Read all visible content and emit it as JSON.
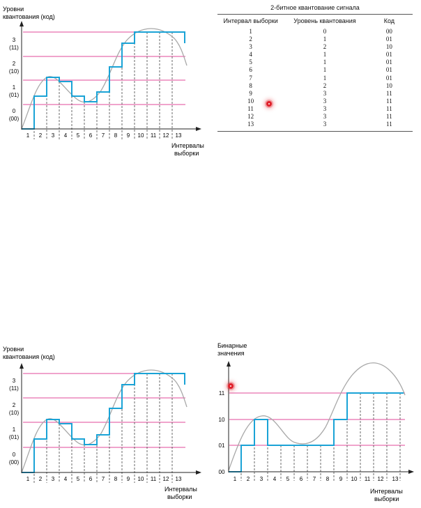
{
  "figure_top_left": {
    "y_axis_title_lines": [
      "Уровни",
      "квантования (код)"
    ],
    "x_axis_title_lines": [
      "Интервалы",
      "выборки"
    ],
    "level_labels": [
      {
        "level": "0",
        "code": "(00)"
      },
      {
        "level": "1",
        "code": "(01)"
      },
      {
        "level": "2",
        "code": "(10)"
      },
      {
        "level": "3",
        "code": "(11)"
      }
    ],
    "interval_labels": [
      "1",
      "2",
      "3",
      "4",
      "5",
      "6",
      "7",
      "8",
      "9",
      "10",
      "11",
      "12",
      "13"
    ]
  },
  "table": {
    "title": "2-битное квантование сигнала",
    "headers": [
      "Интервал выборки",
      "Уровень квантования",
      "Код"
    ],
    "rows": [
      [
        "1",
        "0",
        "00"
      ],
      [
        "2",
        "1",
        "01"
      ],
      [
        "3",
        "2",
        "10"
      ],
      [
        "4",
        "1",
        "01"
      ],
      [
        "5",
        "1",
        "01"
      ],
      [
        "6",
        "1",
        "01"
      ],
      [
        "7",
        "1",
        "01"
      ],
      [
        "8",
        "2",
        "10"
      ],
      [
        "9",
        "3",
        "11"
      ],
      [
        "10",
        "3",
        "11"
      ],
      [
        "11",
        "3",
        "11"
      ],
      [
        "12",
        "3",
        "11"
      ],
      [
        "13",
        "3",
        "11"
      ]
    ]
  },
  "figure_bottom_left": {
    "y_axis_title_lines": [
      "Уровни",
      "квантования (код)"
    ],
    "x_axis_title_lines": [
      "Интервалы",
      "выборки"
    ],
    "level_labels": [
      {
        "level": "0",
        "code": "(00)"
      },
      {
        "level": "1",
        "code": "(01)"
      },
      {
        "level": "2",
        "code": "(10)"
      },
      {
        "level": "3",
        "code": "(11)"
      }
    ],
    "interval_labels": [
      "1",
      "2",
      "3",
      "4",
      "5",
      "6",
      "7",
      "8",
      "9",
      "10",
      "11",
      "12",
      "13"
    ]
  },
  "figure_bottom_right": {
    "y_axis_title_lines": [
      "Бинарные",
      "значения"
    ],
    "x_axis_title_lines": [
      "Интервалы",
      "выборки"
    ],
    "level_labels": [
      "00",
      "01",
      "10",
      "11"
    ],
    "interval_labels": [
      "1",
      "2",
      "3",
      "4",
      "5",
      "6",
      "7",
      "8",
      "9",
      "10",
      "11",
      "12",
      "13"
    ]
  },
  "colors": {
    "quantized_staircase": "#1aa3d6",
    "level_lines": "#e04a9a",
    "analog_curve": "#a8a8a8",
    "axes": "#222222",
    "marker": "#e0212b"
  }
}
